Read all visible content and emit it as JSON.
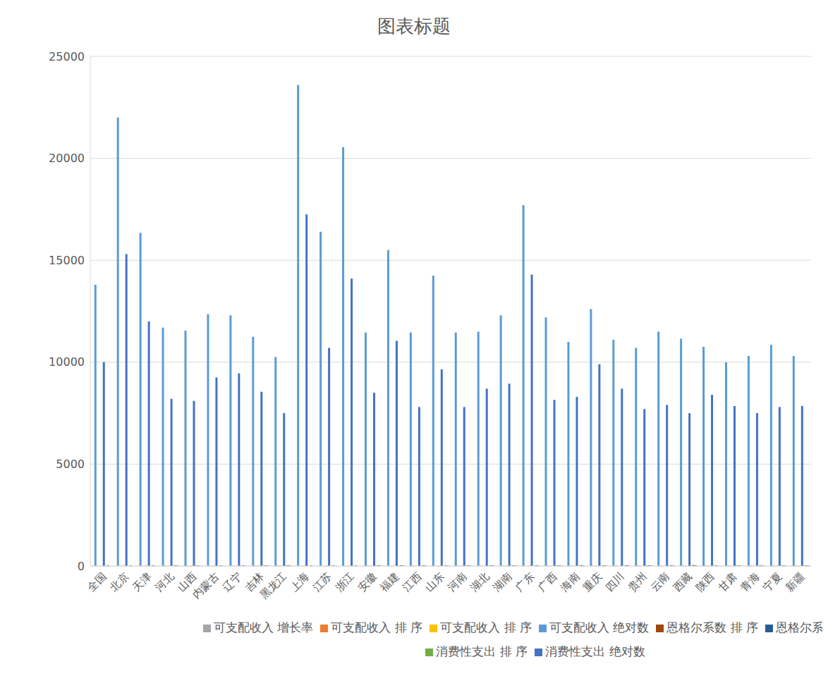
{
  "chart_data": {
    "type": "bar",
    "title": "图表标题",
    "categories": [
      "全国",
      "北京",
      "天津",
      "河北",
      "山西",
      "内蒙古",
      "辽宁",
      "吉林",
      "黑龙江",
      "上海",
      "江苏",
      "浙江",
      "安徽",
      "福建",
      "江西",
      "山东",
      "河南",
      "湖北",
      "湖南",
      "广东",
      "广西",
      "海南",
      "重庆",
      "四川",
      "贵州",
      "云南",
      "西藏",
      "陕西",
      "甘肃",
      "青海",
      "宁夏",
      "新疆"
    ],
    "series": [
      {
        "name": "可支配收入 绝对数",
        "color": "#5B9BD5",
        "values": [
          13800,
          22000,
          16350,
          11700,
          11550,
          12350,
          12300,
          11250,
          10250,
          23600,
          16400,
          20550,
          11450,
          15500,
          11450,
          14250,
          11450,
          11500,
          12300,
          17700,
          12200,
          11000,
          12600,
          11100,
          10700,
          11500,
          11150,
          10750,
          10000,
          10300,
          10850,
          10300
        ]
      },
      {
        "name": "可支配收入 排 序",
        "color": "#ED7D31",
        "values": [
          null,
          2,
          6,
          14,
          15,
          10,
          11,
          21,
          30,
          1,
          5,
          3,
          18,
          7,
          19,
          8,
          20,
          16,
          12,
          4,
          13,
          24,
          9,
          23,
          27,
          17,
          22,
          26,
          31,
          28,
          25,
          29
        ]
      },
      {
        "name": "可支配收入 增长率",
        "color": "#A5A5A5",
        "values": [
          10.1,
          9.0,
          10.5,
          10.6,
          10.0,
          10.8,
          10.9,
          10.2,
          10.4,
          9.3,
          10.5,
          9.8,
          11.2,
          10.8,
          11.0,
          10.3,
          11.0,
          10.8,
          10.5,
          9.8,
          10.9,
          10.7,
          11.1,
          11.3,
          11.4,
          11.1,
          12.2,
          10.9,
          11.0,
          10.7,
          10.7,
          10.4
        ]
      },
      {
        "name": "可支配收入 排 序",
        "color": "#FFC000",
        "values": [
          null,
          31,
          20,
          19,
          27,
          13,
          11,
          26,
          23,
          30,
          21,
          28,
          4,
          14,
          7,
          25,
          8,
          15,
          22,
          29,
          12,
          16,
          5,
          3,
          2,
          6,
          1,
          10,
          9,
          17,
          18,
          24
        ]
      },
      {
        "name": "消费性支出 绝对数",
        "color": "#4472C4",
        "values": [
          10000,
          15300,
          12000,
          8200,
          8100,
          9250,
          9450,
          8550,
          7500,
          17250,
          10700,
          14100,
          8500,
          11050,
          7800,
          9650,
          7800,
          8700,
          8950,
          14300,
          8150,
          8300,
          9900,
          8700,
          7700,
          7900,
          7500,
          8400,
          7850,
          7500,
          7800,
          7850
        ]
      },
      {
        "name": "消费性支出 排 序",
        "color": "#70AD47",
        "values": [
          null,
          2,
          5,
          19,
          21,
          11,
          10,
          15,
          29,
          1,
          7,
          4,
          16,
          6,
          25,
          9,
          26,
          13,
          12,
          3,
          20,
          18,
          8,
          14,
          28,
          22,
          30,
          17,
          23,
          31,
          27,
          24
        ]
      },
      {
        "name": "恩格尔系数 系 数",
        "color": "#255E91",
        "values": [
          37,
          29,
          32,
          34,
          30,
          31,
          33,
          34,
          35,
          28,
          30,
          29,
          36,
          39,
          37,
          32,
          33,
          38,
          34,
          37,
          38,
          45,
          39,
          40,
          39,
          38,
          49,
          31,
          33,
          33,
          31,
          35
        ]
      },
      {
        "name": "恩格尔系数 排 序",
        "color": "#9E480E",
        "values": [
          null,
          2,
          9,
          15,
          4,
          6,
          11,
          16,
          18,
          1,
          5,
          3,
          20,
          26,
          21,
          10,
          12,
          23,
          17,
          22,
          24,
          30,
          27,
          29,
          28,
          25,
          31,
          7,
          13,
          14,
          8,
          19
        ]
      }
    ],
    "ylim": [
      0,
      25000
    ],
    "yticks": [
      0,
      5000,
      10000,
      15000,
      20000,
      25000
    ],
    "grid": true,
    "legend": "bottom"
  }
}
